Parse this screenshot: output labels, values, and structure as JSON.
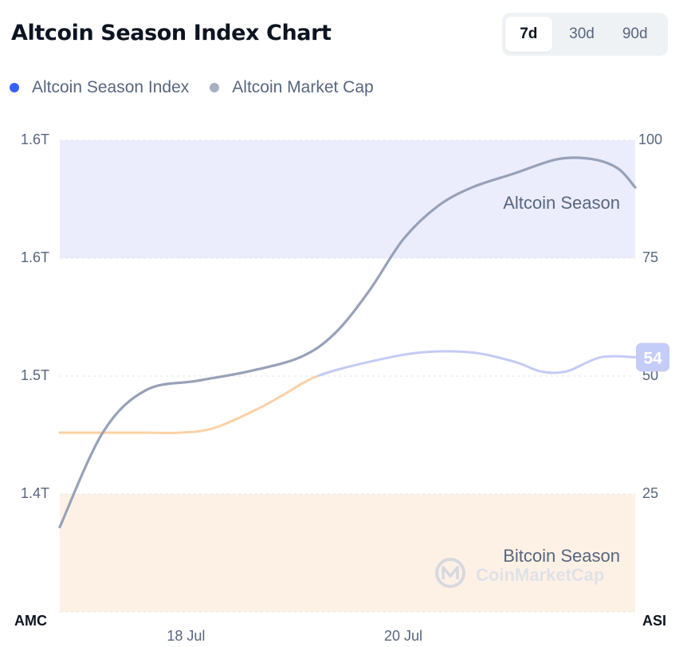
{
  "header": {
    "title": "Altcoin Season Index Chart"
  },
  "range_selector": {
    "options": [
      "7d",
      "30d",
      "90d"
    ],
    "selected": "7d"
  },
  "legend": [
    {
      "label": "Altcoin Season Index",
      "color": "#3861fb"
    },
    {
      "label": "Altcoin Market Cap",
      "color": "#a6b0c3"
    }
  ],
  "watermark": "CoinMarketCap",
  "chart_data": {
    "type": "line",
    "x_ticks": [
      "18 Jul",
      "20 Jul"
    ],
    "left_axis": {
      "title": "AMC",
      "ticks": [
        "1.6T",
        "1.6T",
        "1.5T",
        "1.4T"
      ]
    },
    "right_axis": {
      "title": "ASI",
      "ticks": [
        "100",
        "75",
        "50",
        "25"
      ],
      "ylim": [
        0,
        100
      ]
    },
    "zones": [
      {
        "label": "Altcoin Season",
        "from": 75,
        "to": 100,
        "color": "#ebedfd"
      },
      {
        "label": "Bitcoin Season",
        "from": 0,
        "to": 25,
        "color": "#fdf1e6"
      }
    ],
    "grid": true,
    "series": [
      {
        "name": "Altcoin Season Index",
        "axis": "right",
        "x": [
          0,
          0.5,
          1.0,
          1.4,
          1.8,
          2.3,
          2.6,
          3.0,
          3.6,
          4.2,
          4.8,
          5.3,
          5.6,
          5.9,
          6.3,
          6.7
        ],
        "values": [
          38,
          38,
          38,
          38,
          39,
          43,
          46,
          50,
          53,
          55,
          55,
          53,
          51,
          51,
          54,
          54
        ]
      },
      {
        "name": "Altcoin Market Cap",
        "axis": "right",
        "x": [
          0,
          0.5,
          1.0,
          1.6,
          2.2,
          2.8,
          3.2,
          3.6,
          4.0,
          4.4,
          4.8,
          5.3,
          5.8,
          6.2,
          6.5,
          6.7
        ],
        "values": [
          18,
          38,
          47,
          49,
          51,
          54,
          59,
          68,
          79,
          86,
          90,
          93,
          96,
          96,
          94,
          90
        ]
      }
    ],
    "current_value": 54
  }
}
